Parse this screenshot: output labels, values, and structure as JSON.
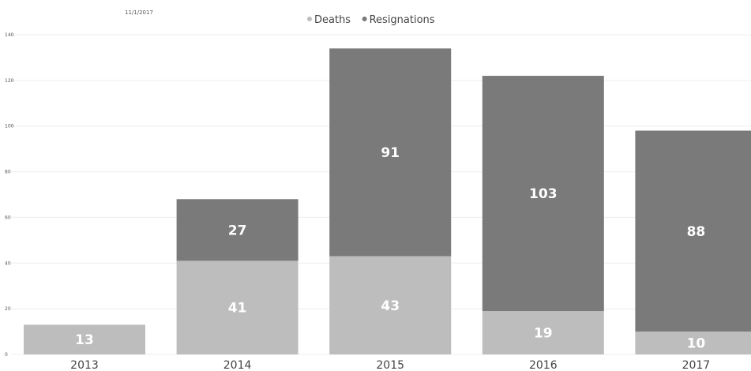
{
  "header": {
    "date": "11/1/2017"
  },
  "chart_data": {
    "type": "bar",
    "stacked": true,
    "categories": [
      "2013",
      "2014",
      "2015",
      "2016",
      "2017"
    ],
    "series": [
      {
        "name": "Deaths",
        "values": [
          13,
          41,
          43,
          19,
          10
        ],
        "color": "#bdbdbd"
      },
      {
        "name": "Resignations",
        "values": [
          0,
          27,
          91,
          103,
          88
        ],
        "color": "#7a7a7a"
      }
    ],
    "ylim": [
      0,
      140
    ],
    "yticks": [
      0,
      20,
      40,
      60,
      80,
      100,
      120,
      140
    ],
    "grid": true,
    "legend": "top-center"
  }
}
